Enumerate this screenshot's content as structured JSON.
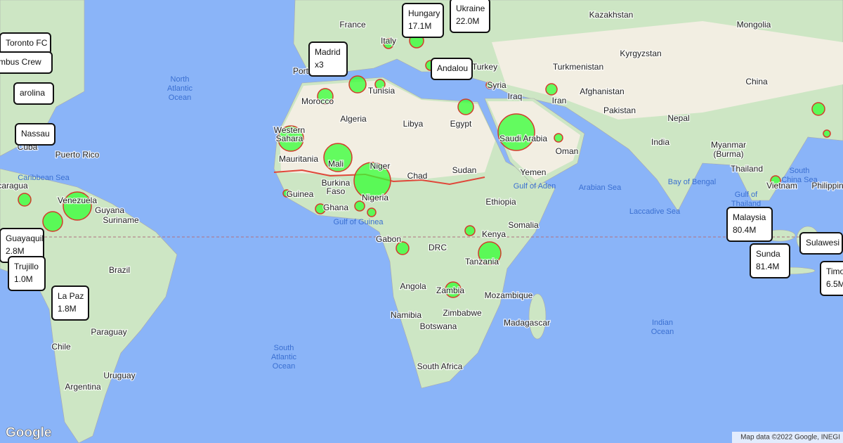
{
  "labels": [
    "France",
    "Kazakhstan",
    "Mongolia",
    "Kyrgyzstan",
    "Turkmenistan",
    "Turkey",
    "Syria",
    "Iraq",
    "Afghanistan",
    "China",
    "Iran",
    "Pakistan",
    "Nepal",
    "Tunisia",
    "Morocco",
    "Algeria",
    "Libya",
    "Egypt",
    "Saudi Arabia",
    "Oman",
    "India",
    "Myanmar",
    "(Burma)",
    "Western",
    "Sahara",
    "Mauritania",
    "Mali",
    "Niger",
    "Chad",
    "Sudan",
    "Yemen",
    "Thailand",
    "Vietnam",
    "Philippin",
    "Burkina",
    "Faso",
    "Guinea",
    "Nigeria",
    "Ghana",
    "Ethiopia",
    "Somalia",
    "Kenya",
    "Gabon",
    "DRC",
    "Tanzania",
    "Angola",
    "Zambia",
    "Mozambique",
    "Namibia",
    "Zimbabwe",
    "Botswana",
    "Madagascar",
    "South Africa",
    "Brazil",
    "Paraguay",
    "Chile",
    "Uruguay",
    "Argentina",
    "Venezuela",
    "Guyana",
    "Suriname",
    "Puerto Rico",
    "Cuba",
    "caragua",
    "Port",
    "Italy"
  ],
  "oceans": [
    [
      "North",
      "Atlantic",
      "Ocean"
    ],
    [
      "South",
      "Atlantic",
      "Ocean"
    ],
    [
      "Indian",
      "Ocean"
    ],
    [
      "Caribbean Sea"
    ],
    [
      "Gulf of Guinea"
    ],
    [
      "Gulf of Aden"
    ],
    [
      "Arabian Sea"
    ],
    [
      "Bay of Bengal"
    ],
    [
      "Laccadive Sea"
    ],
    [
      "South",
      "China Sea"
    ],
    [
      "Gulf of",
      "Thailand"
    ]
  ],
  "popups": [
    {
      "name": "Hungary",
      "value": "17.1M"
    },
    {
      "name": "Ukraine",
      "value": "22.0M"
    },
    {
      "name": "Madrid",
      "value": "x3"
    },
    {
      "name": "Andalou"
    },
    {
      "name": "Toronto FC"
    },
    {
      "name": "mbus Crew"
    },
    {
      "name": "arolina"
    },
    {
      "name": "Nassau"
    },
    {
      "name": "Guayaquil",
      "value": "2.8M"
    },
    {
      "name": "Trujillo",
      "value": "1.0M"
    },
    {
      "name": "La Paz",
      "value": "1.8M"
    },
    {
      "name": "Malaysia",
      "value": "80.4M"
    },
    {
      "name": "Sunda",
      "value": "81.4M"
    },
    {
      "name": "Sulawesi"
    },
    {
      "name": "Timo",
      "value": "6.5M"
    }
  ],
  "footer": {
    "logo": "Google",
    "attribution": "Map data ©2022 Google, INEGI"
  }
}
